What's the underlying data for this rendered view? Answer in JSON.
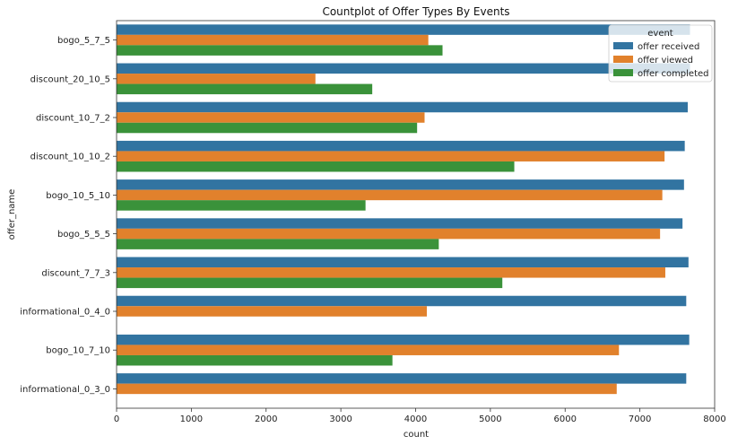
{
  "chart_data": {
    "type": "bar",
    "orientation": "horizontal",
    "title": "Countplot of Offer Types By Events",
    "xlabel": "count",
    "ylabel": "offer_name",
    "xlim": [
      0,
      8000
    ],
    "xticks": [
      0,
      1000,
      2000,
      3000,
      4000,
      5000,
      6000,
      7000,
      8000
    ],
    "grid": false,
    "legend": {
      "title": "event",
      "placement": "top-right"
    },
    "categories": [
      "bogo_5_7_5",
      "discount_20_10_5",
      "discount_10_7_2",
      "discount_10_10_2",
      "bogo_10_5_10",
      "bogo_5_5_5",
      "discount_7_7_3",
      "informational_0_4_0",
      "bogo_10_7_10",
      "informational_0_3_0"
    ],
    "series": [
      {
        "name": "offer received",
        "color": "#3274a1",
        "values": [
          7670,
          7670,
          7640,
          7600,
          7590,
          7570,
          7650,
          7620,
          7660,
          7620
        ]
      },
      {
        "name": "offer viewed",
        "color": "#e1812c",
        "values": [
          4170,
          2660,
          4120,
          7330,
          7300,
          7270,
          7340,
          4150,
          6720,
          6690
        ]
      },
      {
        "name": "offer completed",
        "color": "#3a923a",
        "values": [
          4360,
          3420,
          4020,
          5320,
          3330,
          4310,
          5160,
          null,
          3690,
          null
        ]
      }
    ]
  }
}
